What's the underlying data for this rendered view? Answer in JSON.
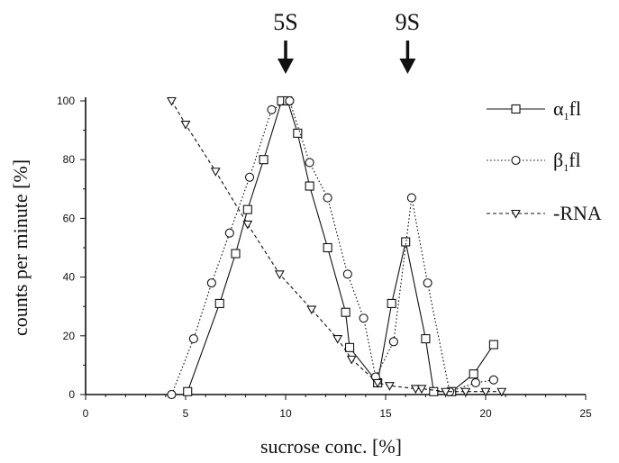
{
  "chart_data": {
    "type": "line",
    "xlabel": "sucrose conc. [%]",
    "ylabel": "counts per minute [%]",
    "xlim": [
      0,
      25
    ],
    "ylim": [
      0,
      100
    ],
    "x_ticks": [
      "0",
      "5",
      "10",
      "15",
      "20",
      "25"
    ],
    "y_ticks": [
      "0",
      "20",
      "40",
      "60",
      "80",
      "100"
    ],
    "markers": [
      {
        "label": "5S",
        "x": 10.0
      },
      {
        "label": "9S",
        "x": 16.1
      }
    ],
    "legend_position": "right",
    "series": [
      {
        "name": "α1fl",
        "legend_main": "α",
        "legend_sub": "1",
        "legend_tail": "fl",
        "marker": "square",
        "line_style": "solid",
        "x": [
          5.1,
          6.7,
          7.5,
          8.1,
          8.9,
          9.8,
          10.1,
          10.6,
          11.2,
          12.1,
          13.0,
          13.2,
          14.6,
          15.3,
          16.0,
          17.0,
          17.4,
          18.3,
          19.4,
          20.4
        ],
        "y": [
          1,
          31,
          48,
          63,
          80,
          100,
          100,
          89,
          71,
          50,
          28,
          16,
          4,
          31,
          52,
          19,
          1,
          1,
          7,
          17
        ]
      },
      {
        "name": "β1fl",
        "legend_main": "β",
        "legend_sub": "1",
        "legend_tail": "fl",
        "marker": "circle",
        "line_style": "dotted",
        "x": [
          4.3,
          5.4,
          6.3,
          7.2,
          8.2,
          9.3,
          10.2,
          11.2,
          12.1,
          13.1,
          13.9,
          14.5,
          15.4,
          16.3,
          17.1,
          18.2,
          19.5,
          20.4
        ],
        "y": [
          0,
          19,
          38,
          55,
          74,
          97,
          100,
          79,
          67,
          41,
          26,
          6,
          18,
          67,
          38,
          1,
          4,
          5
        ]
      },
      {
        "name": "-RNA",
        "legend_main": "-RNA",
        "legend_sub": "",
        "legend_tail": "",
        "marker": "triangle-down",
        "line_style": "dashed",
        "x": [
          4.3,
          5.0,
          6.5,
          8.1,
          9.7,
          11.3,
          12.6,
          13.3,
          14.6,
          15.2,
          16.5,
          16.8,
          18.0,
          19.0,
          20.0,
          20.8
        ],
        "y": [
          100,
          92,
          76,
          58,
          41,
          29,
          19,
          12,
          4,
          3,
          2,
          2,
          1,
          1,
          1,
          1
        ]
      }
    ]
  }
}
